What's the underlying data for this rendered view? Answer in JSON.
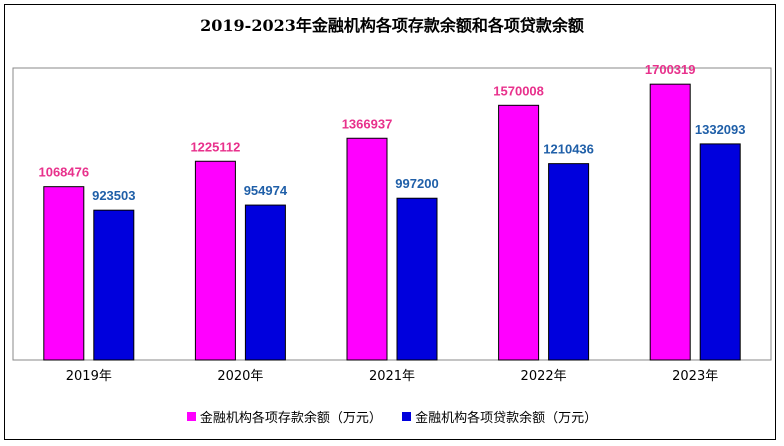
{
  "chart_data": {
    "type": "bar",
    "title": "2019-2023年金融机构各项存款余额和各项贷款余额",
    "categories": [
      "2019年",
      "2020年",
      "2021年",
      "2022年",
      "2023年"
    ],
    "series": [
      {
        "name": "金融机构各项存款余额（万元）",
        "color": "#ff00ff",
        "label_color": "#e8318c",
        "values": [
          1068476,
          1225112,
          1366937,
          1570008,
          1700319
        ]
      },
      {
        "name": "金融机构各项贷款余额（万元）",
        "color": "#0000dd",
        "label_color": "#1f5fa8",
        "values": [
          923503,
          954974,
          997200,
          1210436,
          1332093
        ]
      }
    ],
    "ylim": [
      0,
      1800000
    ],
    "legend_position": "bottom",
    "grid": false,
    "plot_background": "#ffffff"
  }
}
